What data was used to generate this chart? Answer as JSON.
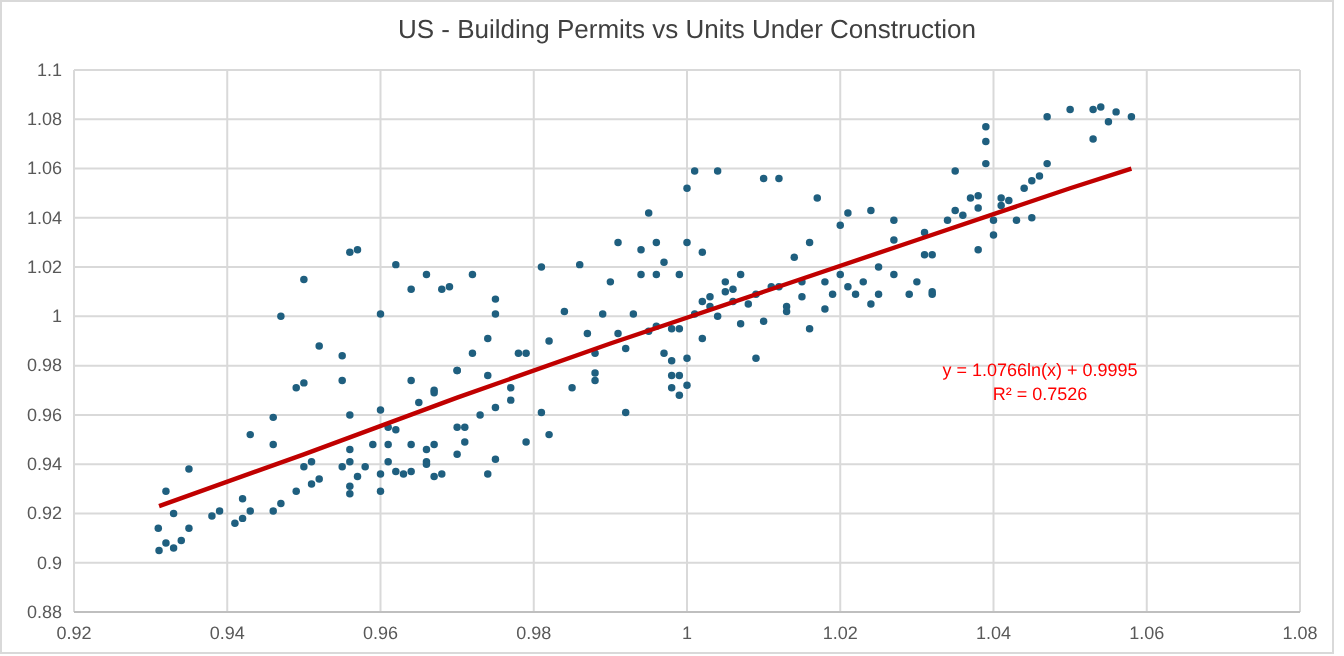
{
  "chart_data": {
    "type": "scatter",
    "title": "US - Building Permits vs Units Under Construction",
    "xlim": [
      0.92,
      1.08
    ],
    "xticks": [
      0.92,
      0.94,
      0.96,
      0.98,
      1,
      1.02,
      1.04,
      1.06,
      1.08
    ],
    "ylim": [
      0.88,
      1.1
    ],
    "yticks": [
      0.88,
      0.9,
      0.92,
      0.94,
      0.96,
      0.98,
      1,
      1.02,
      1.04,
      1.06,
      1.08,
      1.1
    ],
    "grid": true,
    "marker": "circle",
    "annotations": [
      "y = 1.0766ln(x) + 0.9995",
      "R² = 0.7526"
    ],
    "series": [
      {
        "color": "#1f5f7f",
        "x": [
          0.9311,
          0.932,
          0.931,
          0.932,
          0.933,
          0.933,
          0.934,
          0.935,
          0.935,
          0.938,
          0.939,
          0.941,
          0.942,
          0.942,
          0.943,
          0.943,
          0.946,
          0.946,
          0.946,
          0.947,
          0.947,
          0.949,
          0.949,
          0.95,
          0.95,
          0.95,
          0.951,
          0.951,
          0.952,
          0.952,
          0.955,
          0.955,
          0.956,
          0.957,
          0.955,
          0.956,
          0.956,
          0.956,
          0.956,
          0.956,
          0.957,
          0.958,
          0.959,
          0.96,
          0.96,
          0.96,
          0.96,
          0.961,
          0.961,
          0.961,
          0.962,
          0.962,
          0.962,
          0.963,
          0.964,
          0.964,
          0.964,
          0.964,
          0.965,
          0.966,
          0.966,
          0.966,
          0.966,
          0.967,
          0.967,
          0.967,
          0.967,
          0.968,
          0.968,
          0.97,
          0.97,
          0.97,
          0.969,
          0.972,
          0.975,
          0.975,
          0.974,
          0.974,
          0.972,
          0.97,
          0.971,
          0.973,
          0.975,
          0.977,
          0.978,
          0.979,
          0.979,
          0.977,
          0.974,
          0.975,
          0.971,
          0.981,
          0.981,
          0.982,
          0.982,
          0.984,
          0.985,
          0.986,
          0.987,
          0.988,
          0.988,
          0.988,
          0.989,
          0.99,
          0.991,
          0.991,
          0.992,
          0.992,
          0.993,
          0.994,
          0.994,
          0.995,
          0.995,
          0.996,
          0.996,
          0.996,
          0.997,
          0.997,
          0.998,
          0.998,
          0.998,
          0.999,
          0.999,
          0.999,
          1.0,
          1.0,
          1.001,
          0.999,
          1.0,
          1.0,
          1.001,
          1.002,
          1.002,
          1.003,
          1.004,
          1.005,
          1.005,
          1.006,
          1.007,
          1.007,
          1.009,
          1.009,
          1.01,
          1.01,
          1.012,
          1.012,
          1.013,
          1.014,
          1.015,
          1.016,
          1.016,
          1.017,
          1.018,
          1.019,
          1.02,
          1.02,
          1.021,
          1.022,
          1.023,
          1.024,
          1.025,
          1.025,
          1.027,
          1.027,
          1.027,
          1.029,
          1.03,
          1.031,
          1.031,
          1.032,
          1.032,
          1.032,
          1.034,
          1.035,
          1.035,
          1.036,
          1.037,
          1.038,
          1.038,
          1.038,
          1.039,
          1.039,
          1.039,
          1.04,
          1.04,
          1.041,
          1.041,
          1.042,
          1.043,
          1.044,
          1.045,
          1.045,
          1.046,
          1.047,
          1.047,
          1.05,
          1.053,
          1.053,
          1.054,
          1.055,
          1.056,
          1.058,
          1.003,
          1.006,
          1.008,
          1.011,
          1.004,
          0.998,
          1.002,
          1.013,
          1.015,
          1.018,
          1.021,
          1.024
        ],
        "values": [
          0.905,
          0.908,
          0.914,
          0.929,
          0.92,
          0.906,
          0.909,
          0.914,
          0.938,
          0.919,
          0.921,
          0.916,
          0.926,
          0.918,
          0.921,
          0.952,
          0.921,
          0.948,
          0.959,
          0.924,
          1.0,
          0.929,
          0.971,
          0.973,
          1.015,
          0.939,
          0.932,
          0.941,
          0.988,
          0.934,
          0.984,
          0.974,
          1.026,
          1.027,
          0.939,
          0.946,
          0.96,
          0.941,
          0.931,
          0.928,
          0.935,
          0.939,
          0.948,
          1.001,
          0.929,
          0.962,
          0.936,
          0.948,
          0.955,
          0.941,
          0.937,
          1.021,
          0.954,
          0.936,
          0.948,
          0.974,
          1.011,
          0.937,
          0.965,
          0.946,
          1.017,
          0.941,
          0.94,
          0.969,
          0.97,
          0.935,
          0.948,
          0.936,
          1.011,
          0.978,
          0.955,
          0.944,
          1.012,
          1.017,
          1.007,
          1.001,
          0.991,
          0.976,
          0.985,
          0.978,
          0.955,
          0.96,
          0.963,
          0.966,
          0.985,
          0.985,
          0.949,
          0.971,
          0.936,
          0.942,
          0.949,
          1.02,
          0.961,
          0.952,
          0.99,
          1.002,
          0.971,
          1.021,
          0.993,
          0.985,
          0.977,
          0.974,
          1.001,
          1.014,
          0.993,
          1.03,
          0.961,
          0.987,
          1.001,
          1.027,
          1.017,
          0.994,
          1.042,
          1.03,
          1.017,
          0.996,
          1.022,
          0.985,
          0.971,
          0.982,
          0.976,
          1.017,
          0.968,
          0.995,
          1.052,
          1.03,
          1.059,
          0.976,
          0.972,
          0.983,
          1.001,
          1.006,
          1.026,
          1.004,
          1.059,
          1.014,
          1.01,
          1.006,
          1.017,
          0.997,
          0.983,
          1.009,
          1.056,
          0.998,
          1.056,
          1.012,
          1.004,
          1.024,
          1.014,
          0.995,
          1.03,
          1.048,
          1.014,
          1.009,
          1.037,
          1.017,
          1.042,
          1.009,
          1.014,
          1.043,
          1.009,
          1.02,
          1.031,
          1.039,
          1.017,
          1.009,
          1.014,
          1.025,
          1.034,
          1.01,
          1.025,
          1.009,
          1.039,
          1.043,
          1.059,
          1.041,
          1.048,
          1.044,
          1.027,
          1.049,
          1.071,
          1.062,
          1.077,
          1.033,
          1.039,
          1.048,
          1.045,
          1.047,
          1.039,
          1.052,
          1.04,
          1.055,
          1.057,
          1.062,
          1.081,
          1.084,
          1.084,
          1.072,
          1.085,
          1.079,
          1.083,
          1.081,
          1.008,
          1.011,
          1.005,
          1.012,
          1.0,
          0.995,
          0.991,
          1.002,
          1.008,
          1.003,
          1.012,
          1.005
        ]
      },
      {
        "type": "line",
        "color": "#c00000",
        "marker": "none",
        "x": [
          0.9311,
          0.95,
          0.97,
          0.99,
          1.01,
          1.03,
          1.05,
          1.058
        ],
        "values": [
          0.923,
          0.944,
          0.967,
          0.989,
          1.01,
          1.031,
          1.052,
          1.06
        ]
      }
    ]
  }
}
